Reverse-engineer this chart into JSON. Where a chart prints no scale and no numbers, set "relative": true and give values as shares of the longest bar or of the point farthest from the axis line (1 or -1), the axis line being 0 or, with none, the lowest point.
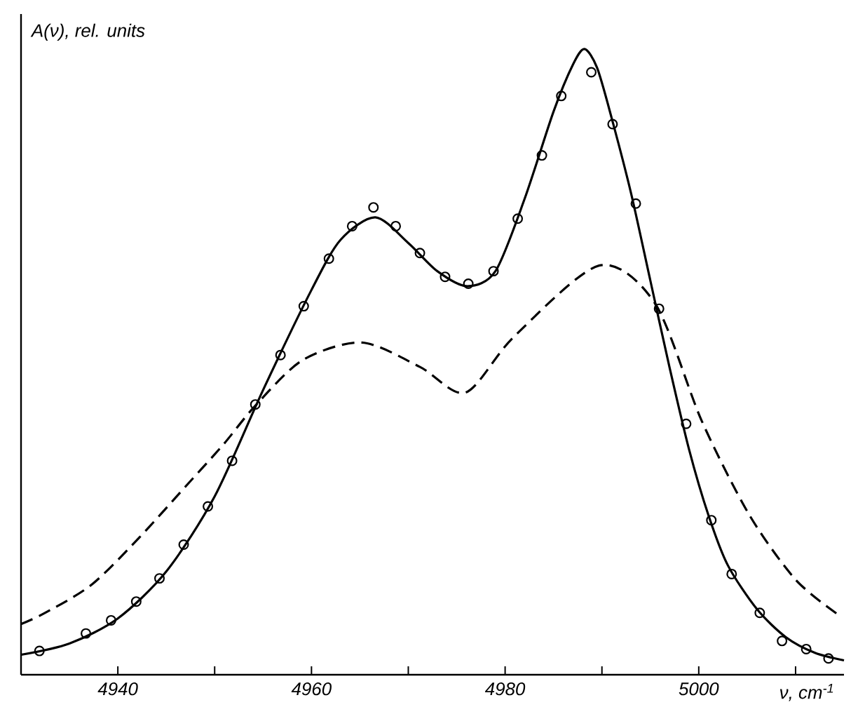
{
  "chart_data": {
    "type": "line",
    "relative": true,
    "xlabel": "ν, cm$^{-1}$",
    "ylabel": "A(ν), rel. units",
    "xlim": [
      4930,
      5015
    ],
    "xticks": [
      4940,
      {
        "value": 4950,
        "label": null
      },
      4960,
      {
        "value": 4970,
        "label": null
      },
      4980,
      {
        "value": 4990,
        "label": null
      },
      5000,
      {
        "value": 5010,
        "label": null
      }
    ],
    "series": [
      {
        "color": "#000000",
        "marker": "none",
        "line_style": "solid",
        "x": [
          4930,
          4935,
          4940,
          4945,
          4950,
          4955,
          4960,
          4963,
          4966.6,
          4970,
          4973,
          4976.1,
          4979,
          4982,
          4985,
          4987,
          4988.2,
          4989.5,
          4991,
          4993,
          4995,
          4997,
          4999,
          5001,
          5003,
          5006,
          5009,
          5012,
          5015
        ],
        "values": [
          0.032,
          0.05,
          0.09,
          0.165,
          0.285,
          0.455,
          0.615,
          0.695,
          0.731,
          0.69,
          0.645,
          0.621,
          0.645,
          0.76,
          0.9,
          0.975,
          1.0,
          0.97,
          0.89,
          0.77,
          0.63,
          0.49,
          0.36,
          0.255,
          0.175,
          0.105,
          0.06,
          0.035,
          0.023
        ]
      },
      {
        "type": "scatter",
        "color": "#000000",
        "marker": "circle",
        "x": [
          4931.9,
          4936.7,
          4939.3,
          4941.9,
          4944.3,
          4946.8,
          4949.3,
          4951.8,
          4954.2,
          4956.8,
          4959.2,
          4961.8,
          4964.2,
          4966.4,
          4968.7,
          4971.2,
          4973.8,
          4976.2,
          4978.8,
          4981.3,
          4983.8,
          4985.8,
          4988.9,
          4991.1,
          4993.5,
          4995.9,
          4998.7,
          5001.3,
          5003.4,
          5006.3,
          5008.6,
          5011.1,
          5013.4
        ],
        "values": [
          0.038,
          0.066,
          0.087,
          0.117,
          0.154,
          0.208,
          0.269,
          0.342,
          0.432,
          0.511,
          0.589,
          0.665,
          0.717,
          0.747,
          0.717,
          0.674,
          0.636,
          0.625,
          0.645,
          0.729,
          0.83,
          0.925,
          0.963,
          0.88,
          0.753,
          0.585,
          0.401,
          0.247,
          0.161,
          0.099,
          0.054,
          0.041,
          0.026
        ]
      },
      {
        "color": "#000000",
        "marker": "none",
        "line_style": "dashed",
        "x": [
          4930,
          4932.5,
          4937.3,
          4942.2,
          4947,
          4950.9,
          4954.2,
          4959.1,
          4965.2,
          4971.2,
          4975.9,
          4980.9,
          4989.7,
          4995.5,
          5000.3,
          5005.2,
          5010,
          5014.4
        ],
        "values": [
          0.081,
          0.099,
          0.144,
          0.219,
          0.301,
          0.368,
          0.43,
          0.503,
          0.531,
          0.492,
          0.451,
          0.54,
          0.654,
          0.593,
          0.406,
          0.256,
          0.152,
          0.096
        ]
      }
    ]
  }
}
